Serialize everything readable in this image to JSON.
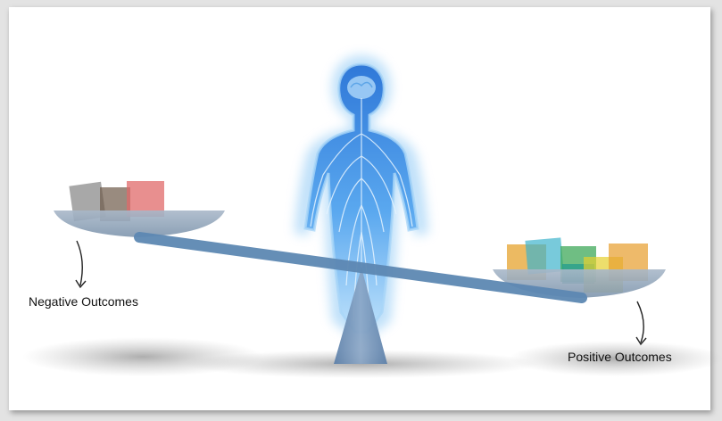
{
  "labels": {
    "negative": "Negative Outcomes",
    "positive": "Positive Outcomes"
  },
  "icons": {
    "figure": "human-body-nervous-system-icon",
    "arrow": "curved-arrow-down-icon"
  },
  "colors": {
    "body_glow": "#8cc8f5",
    "body_fill": "#3d8fe0",
    "beam": "#5d88b3",
    "fulcrum": "#6f8fb8",
    "pan": "#8fa3ba",
    "neg_blocks": [
      "#7a7a7a",
      "#6e5a48",
      "#e06a6a"
    ],
    "pos_blocks": [
      "#e6a32e",
      "#3fb4cc",
      "#3fa85a",
      "#1e9a8e",
      "#e6d02e",
      "#e8a030"
    ]
  }
}
